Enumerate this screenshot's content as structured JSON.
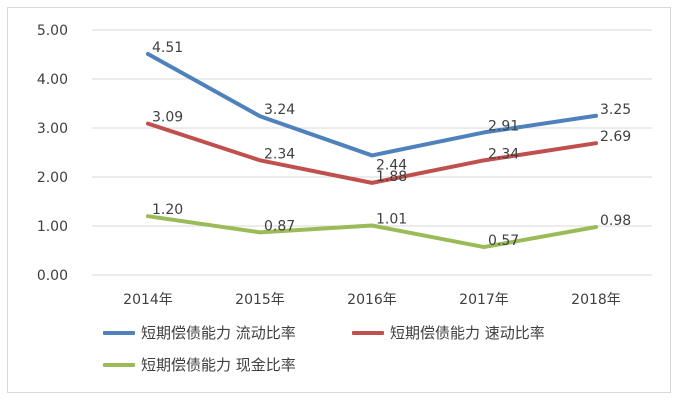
{
  "chart_data": {
    "type": "line",
    "title": "",
    "xlabel": "",
    "ylabel": "",
    "categories": [
      "2014年",
      "2015年",
      "2016年",
      "2017年",
      "2018年"
    ],
    "ylim": [
      0,
      5
    ],
    "yticks": [
      "0.00",
      "1.00",
      "2.00",
      "3.00",
      "4.00",
      "5.00"
    ],
    "grid": true,
    "legend_position": "bottom",
    "series": [
      {
        "name": "短期偿债能力 流动比率",
        "color": "#4f81bd",
        "values": [
          4.51,
          3.24,
          2.44,
          2.91,
          3.25
        ],
        "labels": [
          "4.51",
          "3.24",
          "2.44",
          "2.91",
          "3.25"
        ]
      },
      {
        "name": "短期偿债能力 速动比率",
        "color": "#c0504d",
        "values": [
          3.09,
          2.34,
          1.88,
          2.34,
          2.69
        ],
        "labels": [
          "3.09",
          "2.34",
          "1.88",
          "2.34",
          "2.69"
        ]
      },
      {
        "name": "短期偿债能力 现金比率",
        "color": "#9bbb59",
        "values": [
          1.2,
          0.87,
          1.01,
          0.57,
          0.98
        ],
        "labels": [
          "1.20",
          "0.87",
          "1.01",
          "0.57",
          "0.98"
        ]
      }
    ]
  }
}
